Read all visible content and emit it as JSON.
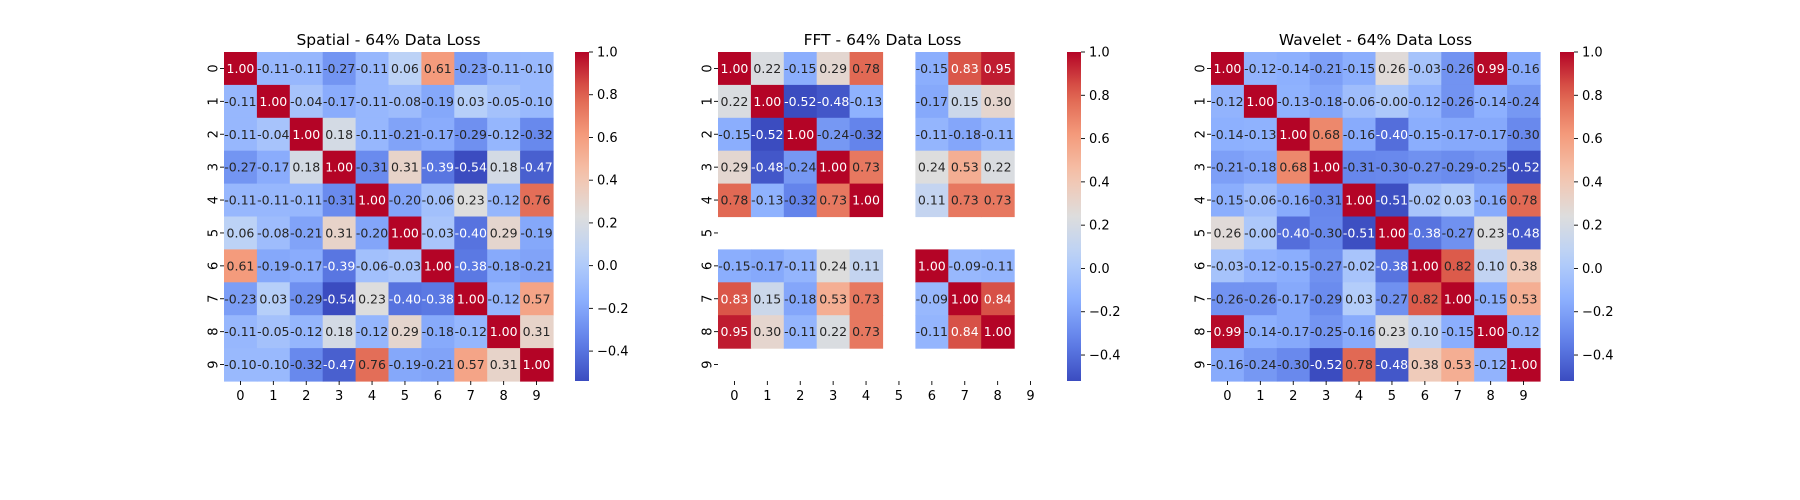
{
  "colors": {
    "low": "#3b4cc0",
    "mid": "#dddddd",
    "high": "#b40426",
    "text_dark": "#262626",
    "text_light": "#ffffff"
  },
  "chart_data": [
    {
      "type": "heatmap",
      "title": "Spatial - 64% Data Loss",
      "x_labels": [
        "0",
        "1",
        "2",
        "3",
        "4",
        "5",
        "6",
        "7",
        "8",
        "9"
      ],
      "y_labels": [
        "0",
        "1",
        "2",
        "3",
        "4",
        "5",
        "6",
        "7",
        "8",
        "9"
      ],
      "vmin": -0.54,
      "vmax": 1.0,
      "colorbar_ticks": [
        -0.4,
        -0.2,
        0.0,
        0.2,
        0.4,
        0.6,
        0.8,
        1.0
      ],
      "colorbar_tick_labels": [
        "−0.4",
        "−0.2",
        "0.0",
        "0.2",
        "0.4",
        "0.6",
        "0.8",
        "1.0"
      ],
      "values": [
        [
          1.0,
          -0.11,
          -0.11,
          -0.27,
          -0.11,
          0.06,
          0.61,
          -0.23,
          -0.11,
          -0.1
        ],
        [
          -0.11,
          1.0,
          -0.04,
          -0.17,
          -0.11,
          -0.08,
          -0.19,
          0.03,
          -0.05,
          -0.1
        ],
        [
          -0.11,
          -0.04,
          1.0,
          0.18,
          -0.11,
          -0.21,
          -0.17,
          -0.29,
          -0.12,
          -0.32
        ],
        [
          -0.27,
          -0.17,
          0.18,
          1.0,
          -0.31,
          0.31,
          -0.39,
          -0.54,
          0.18,
          -0.47
        ],
        [
          -0.11,
          -0.11,
          -0.11,
          -0.31,
          1.0,
          -0.2,
          -0.06,
          0.23,
          -0.12,
          0.76
        ],
        [
          0.06,
          -0.08,
          -0.21,
          0.31,
          -0.2,
          1.0,
          -0.03,
          -0.4,
          0.29,
          -0.19
        ],
        [
          0.61,
          -0.19,
          -0.17,
          -0.39,
          -0.06,
          -0.03,
          1.0,
          -0.38,
          -0.18,
          -0.21
        ],
        [
          -0.23,
          0.03,
          -0.29,
          -0.54,
          0.23,
          -0.4,
          -0.38,
          1.0,
          -0.12,
          0.57
        ],
        [
          -0.11,
          -0.05,
          -0.12,
          0.18,
          -0.12,
          0.29,
          -0.18,
          -0.12,
          1.0,
          0.31
        ],
        [
          -0.1,
          -0.1,
          -0.32,
          -0.47,
          0.76,
          -0.19,
          -0.21,
          0.57,
          0.31,
          1.0
        ]
      ]
    },
    {
      "type": "heatmap",
      "title": "FFT - 64% Data Loss",
      "x_labels": [
        "0",
        "1",
        "2",
        "3",
        "4",
        "5",
        "6",
        "7",
        "8",
        "9"
      ],
      "y_labels": [
        "0",
        "1",
        "2",
        "3",
        "4",
        "5",
        "6",
        "7",
        "8",
        "9"
      ],
      "vmin": -0.52,
      "vmax": 1.0,
      "colorbar_ticks": [
        -0.4,
        -0.2,
        0.0,
        0.2,
        0.4,
        0.6,
        0.8,
        1.0
      ],
      "colorbar_tick_labels": [
        "−0.4",
        "−0.2",
        "0.0",
        "0.2",
        "0.4",
        "0.6",
        "0.8",
        "1.0"
      ],
      "values": [
        [
          1.0,
          0.22,
          -0.15,
          0.29,
          0.78,
          null,
          -0.15,
          0.83,
          0.95,
          null
        ],
        [
          0.22,
          1.0,
          -0.52,
          -0.48,
          -0.13,
          null,
          -0.17,
          0.15,
          0.3,
          null
        ],
        [
          -0.15,
          -0.52,
          1.0,
          -0.24,
          -0.32,
          null,
          -0.11,
          -0.18,
          -0.11,
          null
        ],
        [
          0.29,
          -0.48,
          -0.24,
          1.0,
          0.73,
          null,
          0.24,
          0.53,
          0.22,
          null
        ],
        [
          0.78,
          -0.13,
          -0.32,
          0.73,
          1.0,
          null,
          0.11,
          0.73,
          0.73,
          null
        ],
        [
          null,
          null,
          null,
          null,
          null,
          null,
          null,
          null,
          null,
          null
        ],
        [
          -0.15,
          -0.17,
          -0.11,
          0.24,
          0.11,
          null,
          1.0,
          -0.09,
          -0.11,
          null
        ],
        [
          0.83,
          0.15,
          -0.18,
          0.53,
          0.73,
          null,
          -0.09,
          1.0,
          0.84,
          null
        ],
        [
          0.95,
          0.3,
          -0.11,
          0.22,
          0.73,
          null,
          -0.11,
          0.84,
          1.0,
          null
        ],
        [
          null,
          null,
          null,
          null,
          null,
          null,
          null,
          null,
          null,
          null
        ]
      ]
    },
    {
      "type": "heatmap",
      "title": "Wavelet - 64% Data Loss",
      "x_labels": [
        "0",
        "1",
        "2",
        "3",
        "4",
        "5",
        "6",
        "7",
        "8",
        "9"
      ],
      "y_labels": [
        "0",
        "1",
        "2",
        "3",
        "4",
        "5",
        "6",
        "7",
        "8",
        "9"
      ],
      "vmin": -0.52,
      "vmax": 1.0,
      "colorbar_ticks": [
        -0.4,
        -0.2,
        0.0,
        0.2,
        0.4,
        0.6,
        0.8,
        1.0
      ],
      "colorbar_tick_labels": [
        "−0.4",
        "−0.2",
        "0.0",
        "0.2",
        "0.4",
        "0.6",
        "0.8",
        "1.0"
      ],
      "values": [
        [
          1.0,
          -0.12,
          -0.14,
          -0.21,
          -0.15,
          0.26,
          -0.03,
          -0.26,
          0.99,
          -0.16
        ],
        [
          -0.12,
          1.0,
          -0.13,
          -0.18,
          -0.06,
          -0.0,
          -0.12,
          -0.26,
          -0.14,
          -0.24
        ],
        [
          -0.14,
          -0.13,
          1.0,
          0.68,
          -0.16,
          -0.4,
          -0.15,
          -0.17,
          -0.17,
          -0.3
        ],
        [
          -0.21,
          -0.18,
          0.68,
          1.0,
          -0.31,
          -0.3,
          -0.27,
          -0.29,
          -0.25,
          -0.52
        ],
        [
          -0.15,
          -0.06,
          -0.16,
          -0.31,
          1.0,
          -0.51,
          -0.02,
          0.03,
          -0.16,
          0.78
        ],
        [
          0.26,
          -0.0,
          -0.4,
          -0.3,
          -0.51,
          1.0,
          -0.38,
          -0.27,
          0.23,
          -0.48
        ],
        [
          -0.03,
          -0.12,
          -0.15,
          -0.27,
          -0.02,
          -0.38,
          1.0,
          0.82,
          0.1,
          0.38
        ],
        [
          -0.26,
          -0.26,
          -0.17,
          -0.29,
          0.03,
          -0.27,
          0.82,
          1.0,
          -0.15,
          0.53
        ],
        [
          0.99,
          -0.14,
          -0.17,
          -0.25,
          -0.16,
          0.23,
          0.1,
          -0.15,
          1.0,
          -0.12
        ],
        [
          -0.16,
          -0.24,
          -0.3,
          -0.52,
          0.78,
          -0.48,
          0.38,
          0.53,
          -0.12,
          1.0
        ]
      ]
    }
  ]
}
